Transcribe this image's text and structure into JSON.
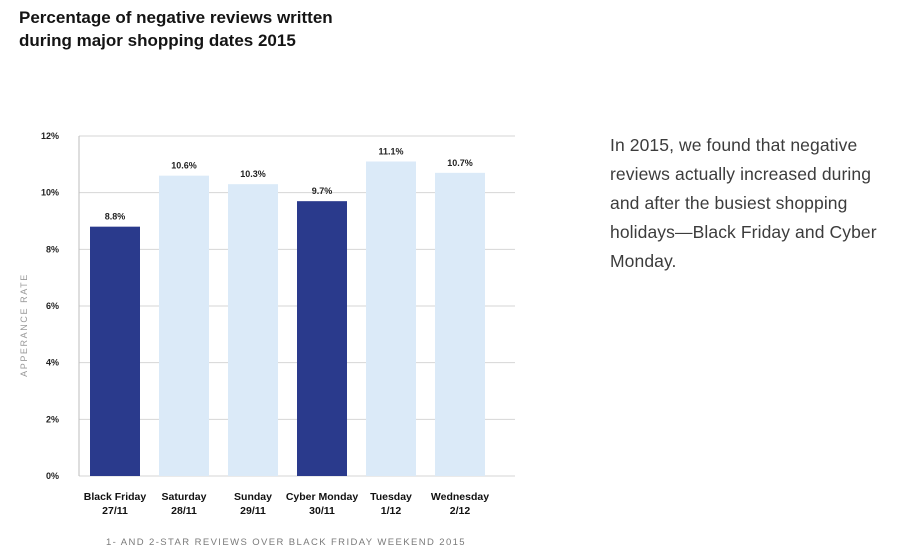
{
  "title_lines": [
    "Percentage of negative reviews written",
    "during major shopping dates 2015"
  ],
  "side_text": "In 2015, we found that negative reviews actually increased during and after the busiest shopping holidays—Black Friday and Cyber Monday.",
  "colors": {
    "highlight": "#2a3a8c",
    "normal": "#dbeaf8"
  },
  "chart_data": {
    "type": "bar",
    "title": "Percentage of negative reviews written during major shopping dates 2015",
    "ylabel": "APPERANCE RATE",
    "xlabel": "1- AND 2-STAR REVIEWS OVER BLACK FRIDAY WEEKEND 2015",
    "ylim": [
      0,
      12
    ],
    "yticks": [
      0,
      2,
      4,
      6,
      8,
      10,
      12
    ],
    "ytick_labels": [
      "0%",
      "2%",
      "4%",
      "6%",
      "8%",
      "10%",
      "12%"
    ],
    "categories": [
      [
        "Black Friday",
        "27/11"
      ],
      [
        "Saturday",
        "28/11"
      ],
      [
        "Sunday",
        "29/11"
      ],
      [
        "Cyber Monday",
        "30/11"
      ],
      [
        "Tuesday",
        "1/12"
      ],
      [
        "Wednesday",
        "2/12"
      ]
    ],
    "values": [
      8.8,
      10.6,
      10.3,
      9.7,
      11.1,
      10.7
    ],
    "value_labels": [
      "8.8%",
      "10.6%",
      "10.3%",
      "9.7%",
      "11.1%",
      "10.7%"
    ],
    "highlighted": [
      true,
      false,
      false,
      true,
      false,
      false
    ],
    "grid": true
  }
}
